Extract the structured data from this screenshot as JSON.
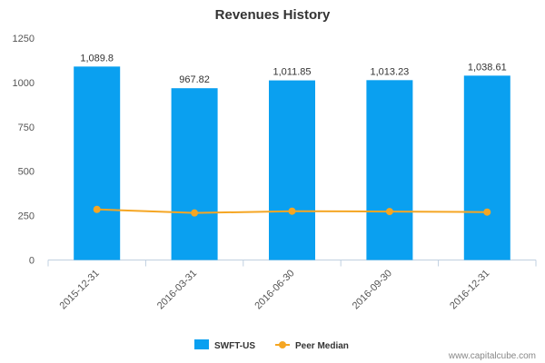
{
  "chart_data": {
    "type": "bar",
    "title": "Revenues History",
    "categories": [
      "2015-12-31",
      "2016-03-31",
      "2016-06-30",
      "2016-09-30",
      "2016-12-31"
    ],
    "series": [
      {
        "name": "SWFT-US",
        "type": "bar",
        "color": "#0aa0f0",
        "values": [
          1089.8,
          967.82,
          1011.85,
          1013.23,
          1038.61
        ],
        "labels": [
          "1,089.8",
          "967.82",
          "1,011.85",
          "1,013.23",
          "1,038.61"
        ]
      },
      {
        "name": "Peer Median",
        "type": "line",
        "color": "#f5a623",
        "values": [
          285,
          265,
          275,
          273,
          270
        ]
      }
    ],
    "ylim": [
      0,
      1250
    ],
    "yticks": [
      0,
      250,
      500,
      750,
      1000,
      1250
    ],
    "xlabel": "",
    "ylabel": "",
    "grid": false,
    "legend": "bottom-center"
  },
  "credit": "www.capitalcube.com"
}
